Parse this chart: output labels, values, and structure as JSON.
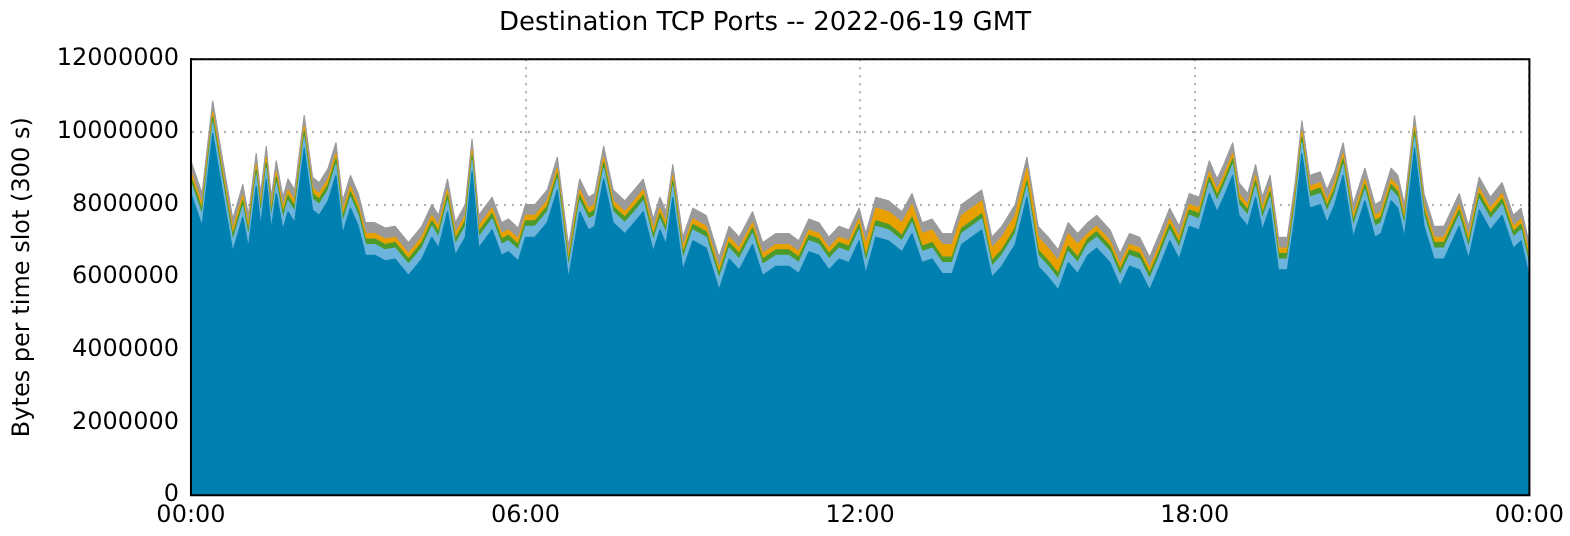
{
  "chart_data": {
    "type": "area",
    "title": "Destination TCP Ports -- 2022-06-19 GMT",
    "ylabel": "Bytes per time slot (300 s)",
    "stacked": true,
    "legend": false,
    "grid": true,
    "x": [
      0,
      0.2,
      0.39,
      0.57,
      0.75,
      0.93,
      1.03,
      1.17,
      1.25,
      1.35,
      1.44,
      1.53,
      1.65,
      1.74,
      1.86,
      2.03,
      2.18,
      2.3,
      2.46,
      2.6,
      2.72,
      2.86,
      3.0,
      3.13,
      3.3,
      3.48,
      3.66,
      3.9,
      4.14,
      4.32,
      4.44,
      4.6,
      4.74,
      4.92,
      5.04,
      5.16,
      5.4,
      5.57,
      5.69,
      5.87,
      6.0,
      6.17,
      6.39,
      6.57,
      6.77,
      6.97,
      7.13,
      7.24,
      7.4,
      7.57,
      7.78,
      7.95,
      8.11,
      8.29,
      8.41,
      8.52,
      8.64,
      8.82,
      9.0,
      9.24,
      9.47,
      9.65,
      9.83,
      10.07,
      10.25,
      10.49,
      10.72,
      10.9,
      11.08,
      11.26,
      11.44,
      11.62,
      11.8,
      11.98,
      12.1,
      12.28,
      12.51,
      12.75,
      12.93,
      13.11,
      13.29,
      13.47,
      13.65,
      13.82,
      14.0,
      14.18,
      14.36,
      14.54,
      14.78,
      14.99,
      15.19,
      15.37,
      15.55,
      15.73,
      15.9,
      16.08,
      16.24,
      16.48,
      16.66,
      16.83,
      17.01,
      17.19,
      17.37,
      17.55,
      17.72,
      17.9,
      18.08,
      18.26,
      18.4,
      18.52,
      18.68,
      18.79,
      18.95,
      19.09,
      19.21,
      19.35,
      19.5,
      19.66,
      19.8,
      19.92,
      20.06,
      20.25,
      20.37,
      20.51,
      20.66,
      20.84,
      21.05,
      21.23,
      21.34,
      21.52,
      21.64,
      21.76,
      21.94,
      22.11,
      22.29,
      22.47,
      22.74,
      22.91,
      23.1,
      23.3,
      23.51,
      23.71,
      23.85,
      24
    ],
    "xlim": [
      0,
      24
    ],
    "xticks": [
      {
        "value": 0,
        "label": "00:00"
      },
      {
        "value": 6,
        "label": "06:00"
      },
      {
        "value": 12,
        "label": "12:00"
      },
      {
        "value": 18,
        "label": "18:00"
      },
      {
        "value": 24,
        "label": "00:00"
      }
    ],
    "ylim": [
      0,
      12000000
    ],
    "yticks": [
      0,
      2000000,
      4000000,
      6000000,
      8000000,
      10000000,
      12000000
    ],
    "series": [
      {
        "color": "#0080b0",
        "values": [
          8300000,
          7400000,
          9950000,
          8300000,
          6700000,
          7650000,
          6800000,
          8500000,
          7400000,
          8700000,
          7300000,
          8300000,
          7300000,
          7800000,
          7500000,
          9550000,
          7850000,
          7700000,
          8100000,
          8800000,
          7200000,
          7900000,
          7400000,
          6600000,
          6600000,
          6450000,
          6500000,
          6050000,
          6500000,
          7100000,
          6800000,
          7800000,
          6600000,
          7100000,
          8900000,
          6800000,
          7300000,
          6600000,
          6700000,
          6450000,
          7100000,
          7100000,
          7500000,
          8400000,
          5950000,
          7800000,
          7300000,
          7400000,
          8700000,
          7500000,
          7200000,
          7500000,
          7800000,
          6700000,
          7300000,
          6900000,
          8200000,
          6200000,
          7000000,
          6800000,
          5650000,
          6500000,
          6200000,
          6900000,
          6050000,
          6300000,
          6300000,
          6100000,
          6700000,
          6600000,
          6200000,
          6500000,
          6400000,
          7000000,
          6100000,
          7100000,
          7000000,
          6700000,
          7200000,
          6400000,
          6500000,
          6100000,
          6100000,
          6900000,
          7100000,
          7300000,
          6000000,
          6300000,
          6900000,
          8200000,
          6300000,
          6000000,
          5650000,
          6400000,
          6100000,
          6600000,
          6800000,
          6400000,
          5750000,
          6300000,
          6200000,
          5650000,
          6300000,
          7000000,
          6500000,
          7400000,
          7300000,
          8300000,
          7800000,
          8200000,
          8800000,
          7700000,
          7400000,
          8200000,
          7300000,
          7900000,
          6200000,
          6200000,
          7700000,
          9400000,
          7900000,
          8000000,
          7500000,
          8000000,
          8800000,
          7100000,
          8100000,
          7100000,
          7200000,
          8100000,
          7900000,
          7100000,
          9550000,
          7400000,
          6500000,
          6500000,
          7400000,
          6500000,
          7850000,
          7300000,
          7700000,
          6800000,
          7000000,
          6000000
        ]
      },
      {
        "color": "#6cb4dc",
        "values": [
          300000,
          300000,
          300000,
          300000,
          300000,
          300000,
          300000,
          300000,
          300000,
          300000,
          300000,
          300000,
          300000,
          300000,
          300000,
          300000,
          300000,
          300000,
          300000,
          300000,
          300000,
          300000,
          300000,
          300000,
          300000,
          300000,
          300000,
          300000,
          300000,
          300000,
          300000,
          300000,
          300000,
          300000,
          300000,
          300000,
          300000,
          300000,
          300000,
          300000,
          300000,
          300000,
          300000,
          300000,
          300000,
          300000,
          300000,
          300000,
          300000,
          300000,
          300000,
          300000,
          300000,
          300000,
          300000,
          300000,
          300000,
          300000,
          300000,
          300000,
          300000,
          300000,
          300000,
          300000,
          300000,
          300000,
          300000,
          300000,
          300000,
          300000,
          300000,
          300000,
          300000,
          300000,
          300000,
          300000,
          300000,
          300000,
          300000,
          300000,
          300000,
          300000,
          300000,
          300000,
          300000,
          300000,
          300000,
          300000,
          300000,
          300000,
          300000,
          300000,
          300000,
          300000,
          300000,
          300000,
          300000,
          300000,
          300000,
          300000,
          300000,
          300000,
          300000,
          300000,
          300000,
          300000,
          300000,
          300000,
          300000,
          300000,
          300000,
          300000,
          300000,
          300000,
          300000,
          300000,
          300000,
          300000,
          300000,
          300000,
          300000,
          300000,
          300000,
          300000,
          300000,
          300000,
          300000,
          300000,
          300000,
          300000,
          300000,
          300000,
          300000,
          300000,
          300000,
          300000,
          300000,
          300000,
          300000,
          300000,
          300000,
          300000,
          300000,
          300000
        ]
      },
      {
        "color": "#4c9a2a",
        "values": [
          150000,
          150000,
          150000,
          150000,
          150000,
          150000,
          150000,
          150000,
          150000,
          150000,
          150000,
          150000,
          150000,
          150000,
          150000,
          150000,
          150000,
          150000,
          150000,
          150000,
          150000,
          150000,
          150000,
          150000,
          150000,
          150000,
          150000,
          150000,
          150000,
          150000,
          150000,
          150000,
          150000,
          150000,
          150000,
          150000,
          150000,
          150000,
          150000,
          150000,
          150000,
          150000,
          150000,
          150000,
          150000,
          150000,
          150000,
          150000,
          150000,
          150000,
          150000,
          150000,
          150000,
          150000,
          150000,
          150000,
          150000,
          150000,
          150000,
          150000,
          150000,
          150000,
          150000,
          150000,
          150000,
          150000,
          150000,
          150000,
          150000,
          150000,
          150000,
          150000,
          150000,
          150000,
          150000,
          150000,
          150000,
          150000,
          150000,
          150000,
          150000,
          150000,
          150000,
          150000,
          150000,
          150000,
          150000,
          150000,
          150000,
          150000,
          150000,
          150000,
          150000,
          150000,
          150000,
          150000,
          150000,
          150000,
          150000,
          150000,
          150000,
          150000,
          150000,
          150000,
          150000,
          150000,
          150000,
          150000,
          150000,
          150000,
          150000,
          150000,
          150000,
          150000,
          150000,
          150000,
          150000,
          150000,
          150000,
          150000,
          150000,
          150000,
          150000,
          150000,
          150000,
          150000,
          150000,
          150000,
          150000,
          150000,
          150000,
          150000,
          150000,
          150000,
          150000,
          150000,
          150000,
          150000,
          150000,
          150000,
          150000,
          150000,
          150000,
          150000
        ]
      },
      {
        "color": "#e8a000",
        "values": [
          150000,
          150000,
          150000,
          150000,
          150000,
          150000,
          150000,
          150000,
          150000,
          150000,
          150000,
          150000,
          150000,
          150000,
          150000,
          150000,
          150000,
          150000,
          150000,
          150000,
          150000,
          150000,
          150000,
          150000,
          150000,
          150000,
          150000,
          150000,
          150000,
          150000,
          150000,
          150000,
          150000,
          150000,
          150000,
          150000,
          150000,
          150000,
          150000,
          150000,
          150000,
          150000,
          150000,
          150000,
          150000,
          150000,
          150000,
          150000,
          150000,
          150000,
          150000,
          150000,
          150000,
          150000,
          150000,
          150000,
          150000,
          150000,
          150000,
          150000,
          150000,
          150000,
          150000,
          150000,
          150000,
          150000,
          150000,
          150000,
          150000,
          150000,
          150000,
          150000,
          150000,
          150000,
          350000,
          350000,
          350000,
          350000,
          350000,
          350000,
          350000,
          350000,
          350000,
          350000,
          350000,
          350000,
          350000,
          350000,
          350000,
          350000,
          350000,
          350000,
          350000,
          350000,
          350000,
          150000,
          150000,
          150000,
          150000,
          150000,
          150000,
          150000,
          150000,
          150000,
          150000,
          150000,
          150000,
          150000,
          150000,
          150000,
          150000,
          150000,
          150000,
          150000,
          150000,
          150000,
          150000,
          150000,
          150000,
          150000,
          150000,
          150000,
          150000,
          150000,
          150000,
          150000,
          150000,
          150000,
          150000,
          150000,
          150000,
          150000,
          150000,
          150000,
          150000,
          150000,
          150000,
          150000,
          150000,
          150000,
          150000,
          150000,
          150000,
          150000
        ]
      },
      {
        "color": "#9a9a9a",
        "values": [
          300000,
          300000,
          300000,
          300000,
          300000,
          300000,
          300000,
          300000,
          300000,
          300000,
          300000,
          300000,
          300000,
          300000,
          300000,
          300000,
          300000,
          300000,
          300000,
          300000,
          300000,
          300000,
          300000,
          300000,
          300000,
          300000,
          300000,
          300000,
          300000,
          300000,
          300000,
          300000,
          300000,
          300000,
          300000,
          300000,
          300000,
          300000,
          300000,
          300000,
          300000,
          300000,
          300000,
          300000,
          300000,
          300000,
          300000,
          300000,
          300000,
          300000,
          300000,
          300000,
          300000,
          300000,
          300000,
          300000,
          300000,
          300000,
          300000,
          300000,
          300000,
          300000,
          300000,
          300000,
          300000,
          300000,
          300000,
          300000,
          300000,
          300000,
          300000,
          300000,
          300000,
          300000,
          300000,
          300000,
          300000,
          300000,
          300000,
          300000,
          300000,
          300000,
          300000,
          300000,
          300000,
          300000,
          300000,
          300000,
          300000,
          300000,
          300000,
          300000,
          300000,
          300000,
          300000,
          300000,
          300000,
          300000,
          300000,
          300000,
          300000,
          300000,
          300000,
          300000,
          300000,
          300000,
          300000,
          300000,
          300000,
          300000,
          300000,
          300000,
          300000,
          300000,
          300000,
          300000,
          300000,
          300000,
          300000,
          300000,
          300000,
          300000,
          300000,
          300000,
          300000,
          300000,
          300000,
          300000,
          300000,
          300000,
          300000,
          300000,
          300000,
          300000,
          300000,
          300000,
          300000,
          300000,
          300000,
          300000,
          300000,
          300000,
          300000,
          300000
        ]
      }
    ]
  }
}
